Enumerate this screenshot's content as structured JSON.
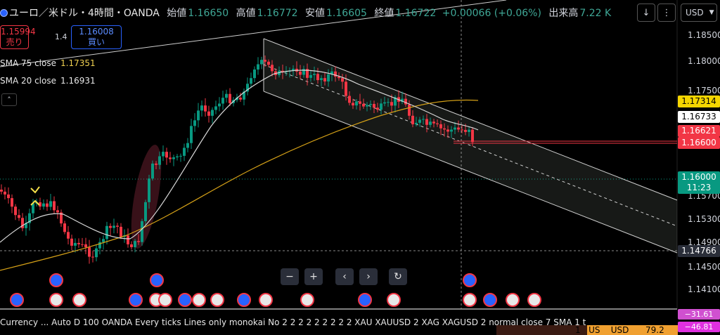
{
  "header": {
    "symbol": "ユーロ／米ドル・4時間・OANDA",
    "open_label": "始値",
    "open": "1.16650",
    "high_label": "高値",
    "high": "1.16772",
    "low_label": "安値",
    "low": "1.16605",
    "close_label": "終値",
    "close": "1.16722",
    "change": "+0.00066 (+0.06%)",
    "volume_label": "出来高",
    "volume": "7.22 K"
  },
  "toolbar": {
    "down_icon": "arrow-down-icon",
    "currency": "USD"
  },
  "trade": {
    "sell_price": "1.15994",
    "sell_label": "売り",
    "spread": "1.4",
    "buy_price": "1.16008",
    "buy_label": "買い"
  },
  "indicators": {
    "sma75_label": "SMA 75 close",
    "sma75_value": "1.17351",
    "sma20_label": "SMA 20 close",
    "sma20_value": "1.16931"
  },
  "axis": {
    "ticks": [
      "1.18500",
      "1.18000",
      "1.17500",
      "1.15700",
      "1.15300",
      "1.14900",
      "1.14500",
      "1.14100"
    ]
  },
  "price_labels": {
    "sma75": "1.17314",
    "sma20": "1.16733",
    "ask": "1.16621",
    "hline": "1.16600",
    "last_price": "1.16000",
    "countdown": "11:23",
    "crosshair": "1.14766"
  },
  "nav": {
    "zoom_out": "−",
    "zoom_in": "+",
    "prev": "‹",
    "next": "›",
    "reset": "↻"
  },
  "bottom": {
    "status": "Currency ...  Auto D 100 OANDA Every ticks Lines only monokai No 2 2 2 2 2 2 2 2 2 XAU XAUUSD 2 XAG XAGUSD 2 normal close 7 SMA 1 t",
    "osc1": "−31.61",
    "osc2": "−46.81",
    "extra_label": "1   US    USD",
    "extra_value": "79.2"
  },
  "colors": {
    "up": "#089981",
    "down": "#f23645",
    "sma75": "#d4a017",
    "sma20": "#d0d0d0",
    "channel": "#c8c8c8",
    "hline": "#f23645"
  }
}
